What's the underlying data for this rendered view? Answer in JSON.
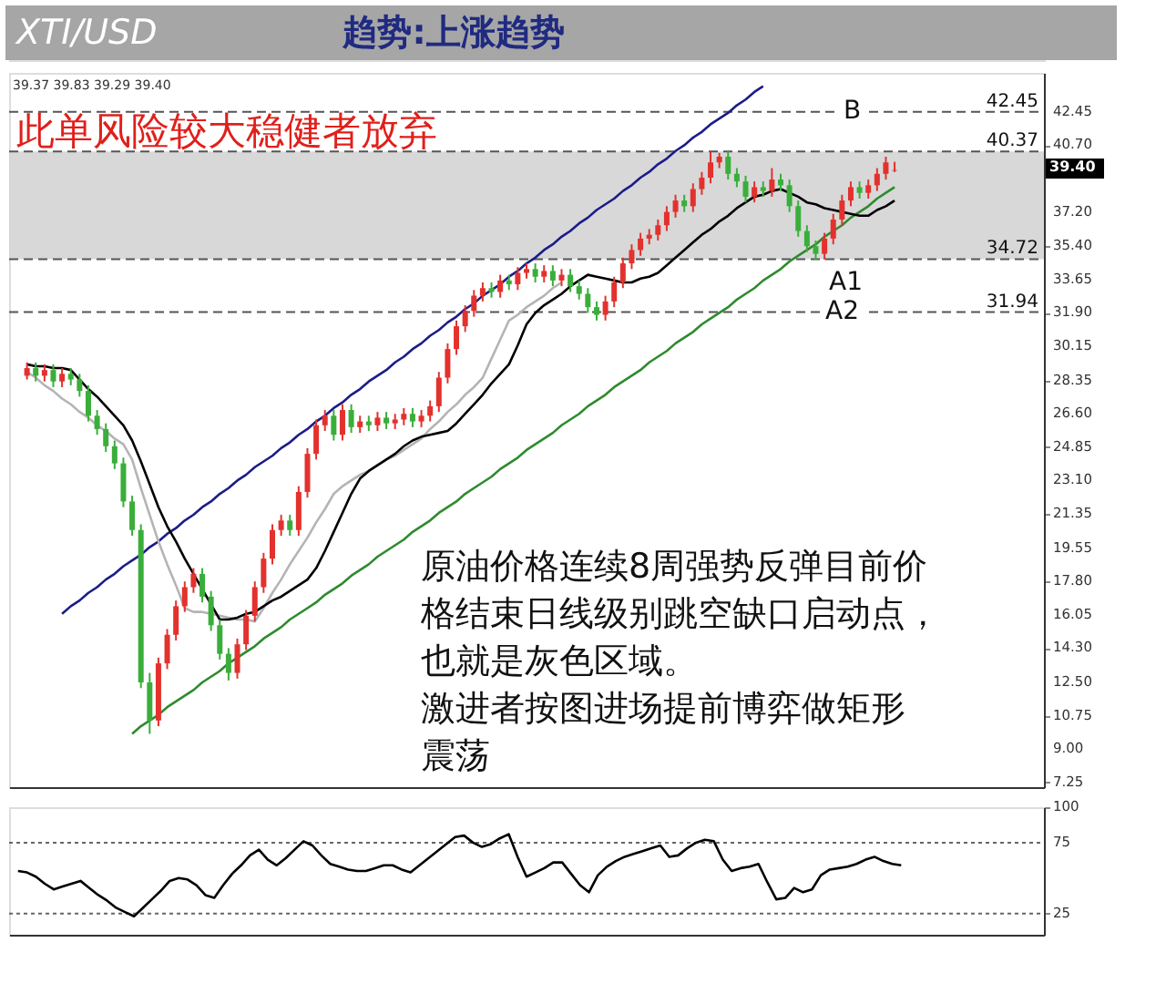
{
  "chart_data": [
    {
      "type": "candlestick",
      "title": "趋势:上涨趋势",
      "subtitle": "XTI/USD",
      "ylim": [
        7.0,
        44.5
      ],
      "tick_labels": "y",
      "grid": false,
      "yticks": [
        42.45,
        {
          "value": 40.7,
          "label": "40.70"
        },
        {
          "value": 37.2,
          "label": "37.20"
        },
        {
          "value": 35.4,
          "label": "35.40"
        },
        33.65,
        {
          "value": 31.9,
          "label": "31.90"
        },
        30.15,
        28.35,
        {
          "value": 26.6,
          "label": "26.60"
        },
        24.85,
        {
          "value": 23.1,
          "label": "23.10"
        },
        21.35,
        19.55,
        {
          "value": 17.8,
          "label": "17.80"
        },
        16.05,
        {
          "value": 14.3,
          "label": "14.30"
        },
        {
          "value": 12.5,
          "label": "12.50"
        },
        10.75,
        {
          "value": 9.0,
          "label": "9.00"
        },
        7.25
      ],
      "categories": [
        null,
        null,
        null,
        null,
        null,
        null,
        null,
        null,
        null,
        null,
        null,
        null,
        null,
        null,
        null,
        null,
        null,
        null,
        null,
        null,
        null,
        null,
        null,
        null,
        null,
        null,
        null,
        null,
        null,
        null,
        null,
        null,
        null,
        null,
        null,
        null,
        null,
        null,
        null,
        null,
        null,
        null,
        null,
        null,
        null,
        null,
        null,
        null,
        null,
        null,
        null,
        null,
        null,
        null,
        null,
        null,
        null,
        null,
        null,
        null,
        null,
        null,
        null,
        null,
        null,
        null,
        null,
        null,
        null,
        null,
        null,
        null,
        null,
        null,
        null,
        null,
        null,
        null,
        null,
        null,
        null,
        null,
        null,
        null,
        null,
        null,
        null,
        null,
        null,
        null,
        null,
        null,
        null,
        null,
        null,
        null,
        null,
        null,
        null,
        null
      ],
      "ohlc": [
        [
          28.6,
          29.3,
          28.4,
          29.0
        ],
        [
          29.0,
          29.3,
          28.3,
          28.6
        ],
        [
          28.6,
          29.2,
          28.3,
          28.9
        ],
        [
          28.9,
          29.2,
          28.0,
          28.3
        ],
        [
          28.3,
          29.0,
          28.0,
          28.7
        ],
        [
          28.7,
          29.0,
          28.1,
          28.4
        ],
        [
          28.4,
          28.7,
          27.5,
          27.8
        ],
        [
          27.8,
          28.1,
          26.2,
          26.5
        ],
        [
          26.5,
          26.8,
          25.5,
          25.8
        ],
        [
          25.8,
          26.1,
          24.6,
          24.9
        ],
        [
          24.9,
          25.2,
          23.7,
          24.0
        ],
        [
          24.0,
          24.3,
          21.7,
          22.0
        ],
        [
          22.0,
          22.3,
          20.2,
          20.5
        ],
        [
          20.5,
          20.8,
          12.2,
          12.5
        ],
        [
          12.5,
          13.0,
          9.8,
          10.5
        ],
        [
          10.5,
          13.8,
          10.2,
          13.5
        ],
        [
          13.5,
          15.3,
          13.2,
          15.0
        ],
        [
          15.0,
          16.8,
          14.7,
          16.5
        ],
        [
          16.5,
          17.8,
          16.2,
          17.5
        ],
        [
          17.5,
          18.5,
          17.2,
          18.2
        ],
        [
          18.2,
          18.5,
          16.7,
          17.0
        ],
        [
          17.0,
          17.3,
          15.2,
          15.5
        ],
        [
          15.5,
          15.8,
          13.7,
          14.0
        ],
        [
          14.0,
          14.3,
          12.6,
          13.0
        ],
        [
          13.0,
          14.8,
          12.7,
          14.5
        ],
        [
          14.5,
          16.3,
          14.2,
          16.0
        ],
        [
          16.0,
          17.8,
          15.7,
          17.5
        ],
        [
          17.5,
          19.3,
          17.2,
          19.0
        ],
        [
          19.0,
          20.8,
          18.7,
          20.5
        ],
        [
          20.5,
          21.3,
          20.2,
          21.0
        ],
        [
          21.0,
          21.3,
          20.2,
          20.5
        ],
        [
          20.5,
          22.8,
          20.2,
          22.5
        ],
        [
          22.5,
          24.8,
          22.2,
          24.5
        ],
        [
          24.5,
          26.3,
          24.2,
          26.0
        ],
        [
          26.0,
          26.8,
          25.7,
          26.5
        ],
        [
          26.5,
          26.8,
          25.2,
          25.5
        ],
        [
          25.5,
          27.1,
          25.2,
          26.8
        ],
        [
          26.8,
          27.1,
          25.6,
          25.9
        ],
        [
          25.9,
          26.5,
          25.6,
          26.2
        ],
        [
          26.2,
          26.5,
          25.7,
          26.0
        ],
        [
          26.0,
          26.7,
          25.7,
          26.4
        ],
        [
          26.4,
          26.7,
          25.8,
          26.1
        ],
        [
          26.1,
          26.6,
          25.8,
          26.3
        ],
        [
          26.3,
          26.9,
          26.0,
          26.6
        ],
        [
          26.6,
          26.9,
          25.9,
          26.2
        ],
        [
          26.2,
          26.8,
          25.9,
          26.5
        ],
        [
          26.5,
          27.3,
          26.2,
          27.0
        ],
        [
          27.0,
          28.8,
          26.7,
          28.5
        ],
        [
          28.5,
          30.3,
          28.2,
          30.0
        ],
        [
          30.0,
          31.5,
          29.7,
          31.2
        ],
        [
          31.2,
          32.3,
          30.9,
          32.0
        ],
        [
          32.0,
          33.1,
          31.7,
          32.8
        ],
        [
          32.8,
          33.5,
          32.5,
          33.2
        ],
        [
          33.2,
          33.5,
          32.7,
          33.0
        ],
        [
          33.0,
          33.9,
          32.7,
          33.6
        ],
        [
          33.6,
          33.9,
          33.1,
          33.4
        ],
        [
          33.4,
          34.3,
          33.1,
          34.0
        ],
        [
          34.0,
          34.5,
          33.7,
          34.2
        ],
        [
          34.2,
          34.5,
          33.5,
          33.8
        ],
        [
          33.8,
          34.4,
          33.5,
          34.1
        ],
        [
          34.1,
          34.4,
          33.3,
          33.6
        ],
        [
          33.6,
          34.2,
          33.3,
          33.9
        ],
        [
          33.9,
          34.2,
          33.0,
          33.3
        ],
        [
          33.3,
          33.6,
          32.6,
          32.9
        ],
        [
          32.9,
          33.2,
          31.9,
          32.2
        ],
        [
          32.2,
          32.5,
          31.5,
          31.8
        ],
        [
          31.8,
          32.8,
          31.5,
          32.5
        ],
        [
          32.5,
          33.8,
          32.2,
          33.5
        ],
        [
          33.5,
          34.8,
          33.2,
          34.5
        ],
        [
          34.5,
          35.5,
          34.2,
          35.2
        ],
        [
          35.2,
          36.1,
          34.9,
          35.8
        ],
        [
          35.8,
          36.3,
          35.5,
          36.0
        ],
        [
          36.0,
          36.8,
          35.7,
          36.5
        ],
        [
          36.5,
          37.5,
          36.2,
          37.2
        ],
        [
          37.2,
          38.1,
          36.9,
          37.8
        ],
        [
          37.8,
          38.1,
          37.2,
          37.5
        ],
        [
          37.5,
          38.7,
          37.2,
          38.4
        ],
        [
          38.4,
          39.3,
          38.1,
          39.0
        ],
        [
          39.0,
          40.4,
          38.7,
          39.8
        ],
        [
          39.8,
          40.3,
          39.5,
          40.1
        ],
        [
          40.1,
          40.4,
          38.9,
          39.2
        ],
        [
          39.2,
          39.5,
          38.5,
          38.8
        ],
        [
          38.8,
          39.1,
          37.7,
          38.0
        ],
        [
          38.0,
          38.8,
          37.7,
          38.5
        ],
        [
          38.5,
          38.8,
          38.0,
          38.3
        ],
        [
          38.3,
          39.5,
          38.0,
          38.9
        ],
        [
          38.9,
          39.2,
          38.3,
          38.6
        ],
        [
          38.6,
          38.9,
          37.2,
          37.5
        ],
        [
          37.5,
          37.8,
          35.9,
          36.2
        ],
        [
          36.2,
          36.5,
          35.1,
          35.4
        ],
        [
          35.4,
          35.7,
          34.7,
          35.0
        ],
        [
          35.0,
          36.1,
          34.7,
          35.8
        ],
        [
          35.8,
          37.1,
          35.5,
          36.8
        ],
        [
          36.8,
          38.1,
          36.5,
          37.8
        ],
        [
          37.8,
          38.8,
          37.5,
          38.5
        ],
        [
          38.5,
          38.8,
          37.9,
          38.2
        ],
        [
          38.2,
          38.9,
          37.9,
          38.6
        ],
        [
          38.6,
          39.5,
          38.3,
          39.2
        ],
        [
          39.2,
          40.1,
          38.9,
          39.8
        ],
        [
          39.37,
          39.83,
          39.29,
          39.4
        ]
      ],
      "series": [
        {
          "type": "line",
          "color": "#1c1c8a",
          "values": [
            null,
            null,
            null,
            null,
            16.1,
            16.5,
            16.8,
            17.2,
            17.5,
            17.9,
            18.2,
            18.6,
            18.9,
            19.2,
            19.6,
            19.9,
            20.3,
            20.6,
            21.0,
            21.3,
            21.7,
            22.0,
            22.4,
            22.7,
            23.1,
            23.4,
            23.8,
            24.1,
            24.4,
            24.8,
            25.1,
            25.5,
            25.8,
            26.2,
            26.5,
            26.9,
            27.2,
            27.6,
            27.9,
            28.3,
            28.6,
            28.9,
            29.3,
            29.6,
            30.0,
            30.3,
            30.7,
            31.0,
            31.4,
            31.7,
            32.1,
            32.4,
            32.8,
            33.1,
            33.4,
            33.8,
            34.1,
            34.5,
            34.8,
            35.2,
            35.5,
            35.9,
            36.2,
            36.6,
            36.9,
            37.3,
            37.6,
            37.9,
            38.3,
            38.6,
            39.0,
            39.3,
            39.7,
            40.0,
            40.4,
            40.7,
            41.1,
            41.4,
            41.8,
            42.1,
            42.4,
            42.8,
            43.1,
            43.5,
            43.8,
            null,
            null,
            null,
            null,
            null,
            null,
            null,
            null,
            null,
            null,
            null,
            null,
            null,
            null,
            null
          ]
        },
        {
          "type": "line",
          "color": "#2e8b2e",
          "values": [
            null,
            null,
            null,
            null,
            null,
            null,
            null,
            null,
            null,
            null,
            null,
            null,
            9.8,
            10.2,
            10.5,
            10.8,
            11.2,
            11.5,
            11.8,
            12.1,
            12.5,
            12.8,
            13.1,
            13.5,
            13.8,
            14.1,
            14.4,
            14.8,
            15.1,
            15.4,
            15.8,
            16.1,
            16.4,
            16.7,
            17.1,
            17.4,
            17.7,
            18.1,
            18.4,
            18.7,
            19.1,
            19.4,
            19.7,
            20.0,
            20.4,
            20.7,
            21.0,
            21.4,
            21.7,
            22.0,
            22.4,
            22.7,
            23.0,
            23.3,
            23.7,
            24.0,
            24.3,
            24.7,
            25.0,
            25.3,
            25.6,
            26.0,
            26.3,
            26.6,
            27.0,
            27.3,
            27.6,
            28.0,
            28.3,
            28.6,
            28.9,
            29.3,
            29.6,
            29.9,
            30.3,
            30.6,
            30.9,
            31.3,
            31.6,
            31.9,
            32.2,
            32.6,
            32.9,
            33.2,
            33.6,
            33.9,
            34.2,
            34.6,
            34.9,
            35.2,
            35.5,
            35.9,
            36.2,
            36.5,
            36.9,
            37.2,
            37.5,
            37.9,
            38.2,
            38.5
          ]
        },
        {
          "type": "line",
          "color": "#b4b4b4",
          "values": [
            28.8,
            28.5,
            28.1,
            27.8,
            27.4,
            27.1,
            26.7,
            26.4,
            26.0,
            25.7,
            25.3,
            25.0,
            24.2,
            22.7,
            21.3,
            19.9,
            18.7,
            17.6,
            16.4,
            16.2,
            16.2,
            16.1,
            16.0,
            15.9,
            15.8,
            15.8,
            15.7,
            16.4,
            17.2,
            17.9,
            18.7,
            19.4,
            20.1,
            20.9,
            21.6,
            22.4,
            22.8,
            23.1,
            23.4,
            23.6,
            23.9,
            24.2,
            24.4,
            24.7,
            25.0,
            25.3,
            25.8,
            26.2,
            26.7,
            27.1,
            27.6,
            28.0,
            28.5,
            29.5,
            30.5,
            31.5,
            31.8,
            32.2,
            32.5,
            32.8,
            33.2,
            33.5,
            null,
            null,
            null,
            null,
            null,
            null,
            null,
            null,
            null,
            null,
            null,
            null,
            null,
            null,
            null,
            null,
            null,
            null,
            null,
            null,
            null,
            null,
            null,
            null,
            null,
            null,
            null,
            null,
            null,
            null,
            null,
            null,
            null,
            null,
            null,
            null,
            null,
            null
          ]
        },
        {
          "type": "line",
          "color": "#000000",
          "values": [
            29.2,
            29.1,
            29.1,
            29.0,
            29.0,
            28.9,
            28.4,
            27.9,
            27.5,
            27.0,
            26.5,
            26.0,
            25.2,
            24.1,
            22.9,
            21.7,
            20.7,
            19.9,
            19.0,
            18.2,
            17.4,
            16.6,
            15.8,
            15.8,
            15.9,
            16.1,
            16.2,
            16.5,
            16.8,
            17.0,
            17.3,
            17.6,
            17.9,
            18.5,
            19.4,
            20.4,
            21.4,
            22.4,
            23.2,
            23.6,
            23.9,
            24.2,
            24.5,
            24.9,
            25.2,
            25.4,
            25.5,
            25.6,
            25.7,
            26.1,
            26.6,
            27.1,
            27.6,
            28.2,
            28.7,
            29.2,
            30.2,
            31.3,
            31.9,
            32.3,
            32.6,
            32.9,
            33.3,
            33.6,
            33.9,
            33.8,
            33.7,
            33.6,
            33.5,
            33.5,
            33.7,
            33.8,
            34.0,
            34.4,
            34.8,
            35.2,
            35.6,
            36.0,
            36.3,
            36.7,
            37.0,
            37.4,
            37.7,
            38.0,
            38.1,
            38.3,
            38.4,
            38.2,
            38.0,
            37.7,
            37.6,
            37.4,
            37.3,
            37.2,
            37.1,
            37.0,
            37.0,
            37.3,
            37.5,
            37.8
          ]
        }
      ],
      "bands": [
        {
          "axis": "y",
          "from": 34.72,
          "to": 40.37,
          "color": "#d4d4d4"
        }
      ],
      "ref_lines": [
        {
          "axis": "y",
          "value": 42.45,
          "label": "42.45",
          "line_style": "dashed",
          "color": "#555555"
        },
        {
          "axis": "y",
          "value": 40.37,
          "label": "40.37",
          "line_style": "dashed",
          "color": "#555555"
        },
        {
          "axis": "y",
          "value": 34.72,
          "label": "34.72",
          "line_style": "dashed",
          "color": "#555555"
        },
        {
          "axis": "y",
          "value": 31.94,
          "label": "31.94",
          "line_style": "dashed",
          "color": "#555555"
        }
      ],
      "annotations": [
        "39.37 39.83 39.29 39.40",
        "此单风险较大稳健者放弃",
        "原油价格连续8周强势反弹目前价格结束日线级别跳空缺口启动点，也就是灰色区域。",
        "激进者按图进场提前博弈做矩形震荡",
        "B",
        "A1",
        "A2",
        "39.40"
      ]
    },
    {
      "type": "line",
      "ylim": [
        10,
        100
      ],
      "yticks": [
        100,
        75,
        25
      ],
      "tick_labels": "y",
      "grid": false,
      "color": "#000000",
      "categories": [
        null,
        null,
        null,
        null,
        null,
        null,
        null,
        null,
        null,
        null,
        null,
        null,
        null,
        null,
        null,
        null,
        null,
        null,
        null,
        null,
        null,
        null,
        null,
        null,
        null,
        null,
        null,
        null,
        null,
        null,
        null,
        null,
        null,
        null,
        null,
        null,
        null,
        null,
        null,
        null,
        null,
        null,
        null,
        null,
        null,
        null,
        null,
        null,
        null,
        null,
        null,
        null,
        null,
        null,
        null,
        null,
        null,
        null,
        null,
        null,
        null,
        null,
        null,
        null,
        null,
        null,
        null,
        null,
        null,
        null,
        null,
        null,
        null,
        null,
        null,
        null,
        null,
        null,
        null,
        null,
        null,
        null,
        null,
        null,
        null,
        null,
        null,
        null,
        null,
        null,
        null,
        null,
        null,
        null,
        null,
        null,
        null,
        null,
        null,
        null
      ],
      "values": [
        55,
        54,
        51,
        46,
        42,
        44,
        46,
        48,
        43,
        38,
        34,
        29,
        26,
        23,
        29,
        35,
        41,
        48,
        50,
        49,
        45,
        38,
        36,
        45,
        53,
        59,
        66,
        70,
        63,
        59,
        64,
        70,
        76,
        73,
        66,
        60,
        58,
        56,
        55,
        55,
        57,
        59,
        59,
        56,
        54,
        59,
        64,
        69,
        74,
        79,
        80,
        75,
        72,
        74,
        78,
        81,
        65,
        51,
        54,
        57,
        61,
        61,
        53,
        45,
        40,
        52,
        58,
        62,
        65,
        67,
        69,
        71,
        73,
        65,
        66,
        71,
        75,
        77,
        76,
        63,
        55,
        57,
        58,
        60,
        47,
        35,
        36,
        43,
        40,
        42,
        52,
        56,
        57,
        58,
        60,
        63,
        65,
        62,
        60,
        59
      ],
      "ref_lines": [
        {
          "axis": "y",
          "value": 75,
          "line_style": "dotted",
          "color": "#666666"
        },
        {
          "axis": "y",
          "value": 25,
          "line_style": "dotted",
          "color": "#666666"
        }
      ]
    }
  ]
}
